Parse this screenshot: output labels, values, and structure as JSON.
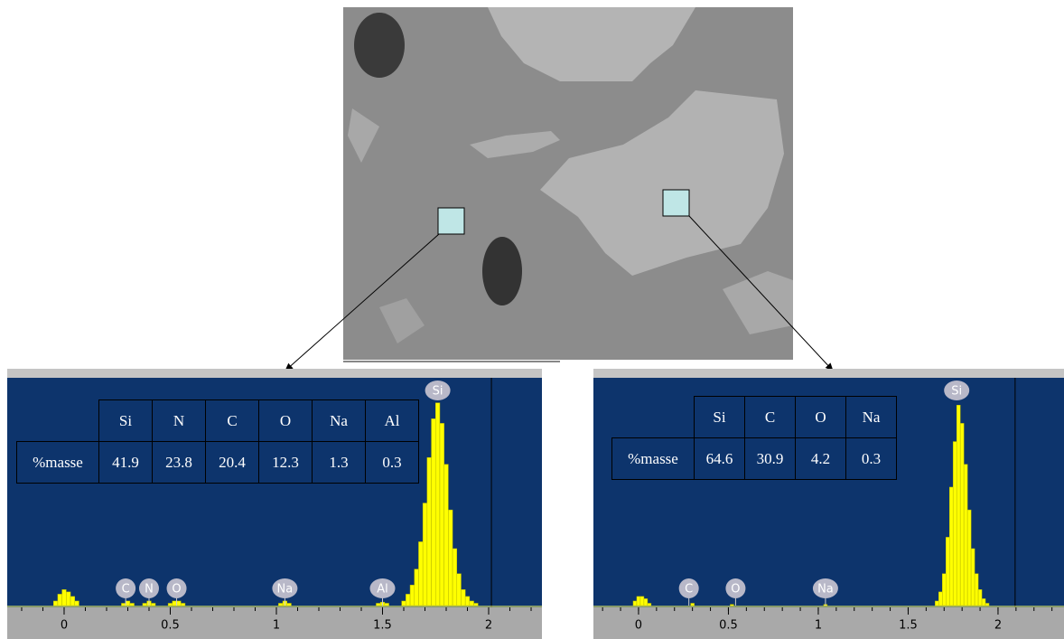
{
  "chart_data": [
    {
      "type": "bar",
      "xlim": [
        -0.268,
        2.251
      ],
      "ylim": [
        0,
        100
      ],
      "xticks": [
        0,
        0.5,
        1,
        1.5,
        2
      ],
      "cursor_x": 2.013,
      "color": "#ffff00",
      "x": [
        -0.04,
        -0.02,
        0,
        0.02,
        0.04,
        0.06,
        0.28,
        0.3,
        0.32,
        0.38,
        0.4,
        0.42,
        0.5,
        0.52,
        0.54,
        0.56,
        1.02,
        1.04,
        1.06,
        1.48,
        1.5,
        1.52,
        1.6,
        1.62,
        1.64,
        1.66,
        1.68,
        1.7,
        1.72,
        1.74,
        1.76,
        1.78,
        1.8,
        1.82,
        1.84,
        1.86,
        1.88,
        1.9,
        1.92,
        1.94
      ],
      "values": [
        2,
        5,
        7,
        6,
        4,
        2,
        1,
        2,
        1,
        1,
        2,
        1,
        1,
        2,
        2,
        1,
        1,
        2,
        1,
        1,
        1.5,
        1,
        2,
        5,
        9,
        16,
        28,
        45,
        65,
        82,
        89,
        80,
        62,
        42,
        25,
        14,
        7,
        4,
        2,
        1
      ],
      "peak_labels": [
        {
          "label": "C",
          "x": 0.29
        },
        {
          "label": "N",
          "x": 0.4
        },
        {
          "label": "O",
          "x": 0.53
        },
        {
          "label": "Na",
          "x": 1.04
        },
        {
          "label": "Al",
          "x": 1.5
        },
        {
          "label": "Si",
          "x": 1.76
        }
      ],
      "table": {
        "columns": [
          "Si",
          "N",
          "C",
          "O",
          "Na",
          "Al"
        ],
        "row_label": "%masse",
        "values": [
          41.9,
          23.8,
          20.4,
          12.3,
          1.3,
          0.3
        ]
      }
    },
    {
      "type": "bar",
      "xlim": [
        -0.251,
        2.367
      ],
      "ylim": [
        0,
        100
      ],
      "xticks": [
        0,
        0.5,
        1,
        1.5,
        2
      ],
      "cursor_x": 2.095,
      "color": "#ffff00",
      "x": [
        -0.02,
        0,
        0.02,
        0.04,
        0.06,
        0.3,
        0.52,
        1.04,
        1.66,
        1.68,
        1.7,
        1.72,
        1.74,
        1.76,
        1.78,
        1.8,
        1.82,
        1.84,
        1.86,
        1.88,
        1.9,
        1.92,
        1.94
      ],
      "values": [
        2,
        4,
        4,
        3,
        1,
        1,
        0.5,
        0.5,
        2,
        6,
        14,
        30,
        52,
        72,
        88,
        80,
        62,
        42,
        25,
        14,
        7,
        3,
        1
      ],
      "peak_labels": [
        {
          "label": "C",
          "x": 0.28
        },
        {
          "label": "O",
          "x": 0.54
        },
        {
          "label": "Na",
          "x": 1.04
        },
        {
          "label": "Si",
          "x": 1.77
        }
      ],
      "table": {
        "columns": [
          "Si",
          "C",
          "O",
          "Na"
        ],
        "row_label": "%masse",
        "values": [
          64.6,
          30.9,
          4.2,
          0.3
        ]
      }
    }
  ]
}
